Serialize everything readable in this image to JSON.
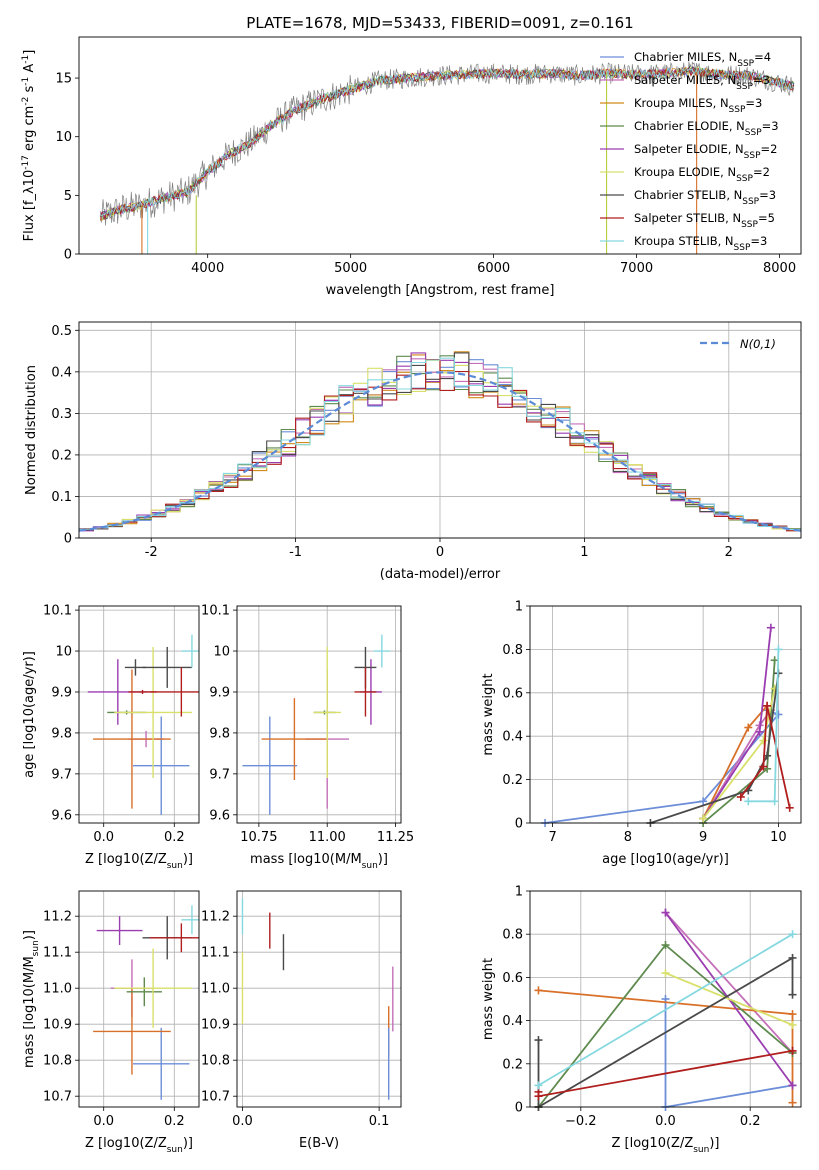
{
  "figure": {
    "title": "PLATE=1678, MJD=53433, FIBERID=0091, z=0.161"
  },
  "chart_data": [
    {
      "id": "spectrum",
      "type": "line",
      "xlabel": "wavelength [Angstrom, rest frame]",
      "ylabel": "Flux [f_λ10^-17 erg cm^-2 s^-1 A^-1]",
      "xlim": [
        3100,
        8150
      ],
      "ylim": [
        0,
        18.5
      ],
      "xticks": [
        4000,
        5000,
        6000,
        7000,
        8000
      ],
      "yticks": [
        0,
        5,
        10,
        15
      ],
      "grid": false,
      "legend_position": "top-right",
      "legend": [
        {
          "name": "Chabrier MILES, N_SSP=4",
          "color": "#6c8ed8"
        },
        {
          "name": "Salpeter MILES, N_SSP=3",
          "color": "#c46fb8"
        },
        {
          "name": "Kroupa MILES, N_SSP=3",
          "color": "#d08b1a"
        },
        {
          "name": "Chabrier ELODIE, N_SSP=3",
          "color": "#5e8a4e"
        },
        {
          "name": "Salpeter ELODIE, N_SSP=2",
          "color": "#9a3db0"
        },
        {
          "name": "Kroupa ELODIE, N_SSP=2",
          "color": "#d8e06a"
        },
        {
          "name": "Chabrier STELIB, N_SSP=3",
          "color": "#4a4a4a"
        },
        {
          "name": "Salpeter STELIB, N_SSP=5",
          "color": "#b01e1e"
        },
        {
          "name": "Kroupa STELIB, N_SSP=3",
          "color": "#86d8e0"
        }
      ],
      "data_color": "#808080",
      "continuum": {
        "x": [
          3250,
          3400,
          3550,
          3700,
          3850,
          4000,
          4150,
          4300,
          4450,
          4600,
          4800,
          5000,
          5200,
          5400,
          5600,
          5800,
          6000,
          6200,
          6400,
          6600,
          6800,
          7000,
          7200,
          7400,
          7600,
          7800,
          8000,
          8100
        ],
        "y": [
          3.2,
          3.8,
          4.2,
          4.8,
          5.2,
          7.0,
          8.5,
          9.5,
          11.0,
          12.2,
          13.2,
          14.0,
          14.8,
          15.0,
          15.2,
          15.3,
          15.4,
          15.3,
          15.4,
          15.2,
          15.4,
          15.3,
          15.4,
          15.6,
          15.3,
          15.2,
          14.6,
          14.3
        ]
      },
      "spikes": [
        {
          "x": 3540,
          "ymin": 0,
          "ymax": 4.2,
          "color": "#d8702a"
        },
        {
          "x": 3580,
          "ymin": 0,
          "ymax": 4.2,
          "color": "#86d8e0"
        },
        {
          "x": 3920,
          "ymin": 0,
          "ymax": 5.0,
          "color": "#b5d040"
        },
        {
          "x": 6790,
          "ymin": 0,
          "ymax": 15.5,
          "color": "#b5d040"
        },
        {
          "x": 7420,
          "ymin": 0,
          "ymax": 15.5,
          "color": "#d8702a"
        }
      ]
    },
    {
      "id": "residuals",
      "type": "histogram",
      "xlabel": "(data-model)/error",
      "ylabel": "Normed distribution",
      "xlim": [
        -2.5,
        2.5
      ],
      "ylim": [
        0,
        0.52
      ],
      "xticks": [
        -2,
        -1,
        0,
        1,
        2
      ],
      "yticks": [
        0.0,
        0.1,
        0.2,
        0.3,
        0.4,
        0.5
      ],
      "grid": true,
      "legend_position": "top-right",
      "reference_curve": {
        "name": "N(0,1)",
        "mean": 0,
        "sigma": 1,
        "color": "#5b8bd6",
        "style": "dashed"
      },
      "bin_start": -2.5,
      "bin_width": 0.1,
      "series_colors": [
        "#6c8ed8",
        "#c46fb8",
        "#d08b1a",
        "#5e8a4e",
        "#9a3db0",
        "#d8e06a",
        "#4a4a4a",
        "#b01e1e",
        "#86d8e0"
      ]
    },
    {
      "id": "z-age",
      "type": "errorbar",
      "xlabel": "Z [log10(Z/Z_sun)]",
      "ylabel": "age [log10(age/yr)]",
      "xlim": [
        -0.07,
        0.27
      ],
      "ylim": [
        9.58,
        10.11
      ],
      "xticks": [
        0.0,
        0.2
      ],
      "xtick_labels": [
        "0.0",
        "0.2"
      ],
      "yticks": [
        9.6,
        9.7,
        9.8,
        9.9,
        10.0,
        10.1
      ],
      "grid": true,
      "points": [
        {
          "x": 0.163,
          "xerr": 0.08,
          "y": 9.72,
          "yerr": 0.12,
          "color": "#6c8ed8"
        },
        {
          "x": 0.12,
          "xerr": 0.05,
          "y": 9.785,
          "yerr": 0.02,
          "color": "#c46fb8"
        },
        {
          "x": 0.08,
          "xerr": 0.11,
          "y": 9.785,
          "yerr": 0.17,
          "color": "#d8702a"
        },
        {
          "x": 0.065,
          "xerr": 0.055,
          "y": 9.85,
          "yerr": 0.005,
          "color": "#5e8a4e"
        },
        {
          "x": 0.04,
          "xerr": 0.085,
          "y": 9.9,
          "yerr": 0.08,
          "color": "#9a3db0"
        },
        {
          "x": 0.14,
          "xerr": 0.11,
          "y": 9.85,
          "yerr": 0.16,
          "color": "#d8e06a"
        },
        {
          "x": 0.18,
          "xerr": 0.07,
          "y": 9.96,
          "yerr": 0.05,
          "color": "#4a4a4a"
        },
        {
          "x": 0.22,
          "xerr": 0.09,
          "y": 9.9,
          "yerr": 0.06,
          "color": "#b01e1e"
        },
        {
          "x": 0.25,
          "xerr": 0.03,
          "y": 10.0,
          "yerr": 0.04,
          "color": "#86d8e0"
        },
        {
          "x": 0.09,
          "xerr": 0.03,
          "y": 9.96,
          "yerr": 0.02,
          "color": "#4a4a4a"
        },
        {
          "x": 0.11,
          "xerr": 0.04,
          "y": 9.9,
          "yerr": 0.005,
          "color": "#b01e1e"
        }
      ]
    },
    {
      "id": "mass-age",
      "type": "errorbar",
      "xlabel": "mass [log10(M/M_sun)]",
      "ylabel": "",
      "xlim": [
        10.67,
        11.27
      ],
      "ylim": [
        9.58,
        10.11
      ],
      "xticks": [
        10.75,
        11.0,
        11.25
      ],
      "xtick_labels": [
        "10.75",
        "11.00",
        "11.25"
      ],
      "yticks": [
        9.6,
        9.7,
        9.8,
        9.9,
        10.0,
        10.1
      ],
      "grid": true,
      "points": [
        {
          "x": 10.79,
          "xerr": 0.1,
          "y": 9.72,
          "yerr": 0.12,
          "color": "#6c8ed8"
        },
        {
          "x": 11.0,
          "xerr": 0.08,
          "y": 9.785,
          "yerr": 0.17,
          "color": "#c46fb8"
        },
        {
          "x": 10.88,
          "xerr": 0.12,
          "y": 9.785,
          "yerr": 0.1,
          "color": "#d8702a"
        },
        {
          "x": 10.99,
          "xerr": 0.04,
          "y": 9.85,
          "yerr": 0.005,
          "color": "#5e8a4e"
        },
        {
          "x": 11.16,
          "xerr": 0.04,
          "y": 9.9,
          "yerr": 0.08,
          "color": "#9a3db0"
        },
        {
          "x": 11.0,
          "xerr": 0.05,
          "y": 9.85,
          "yerr": 0.16,
          "color": "#d8e06a"
        },
        {
          "x": 11.14,
          "xerr": 0.04,
          "y": 9.96,
          "yerr": 0.05,
          "color": "#4a4a4a"
        },
        {
          "x": 11.14,
          "xerr": 0.04,
          "y": 9.9,
          "yerr": 0.06,
          "color": "#b01e1e"
        },
        {
          "x": 11.2,
          "xerr": 0.03,
          "y": 10.0,
          "yerr": 0.04,
          "color": "#86d8e0"
        }
      ]
    },
    {
      "id": "age-weight",
      "type": "line",
      "xlabel": "age [log10(age/yr)]",
      "ylabel": "mass weight",
      "xlim": [
        6.7,
        10.3
      ],
      "ylim": [
        0,
        1.0
      ],
      "xticks": [
        7,
        8,
        9,
        10
      ],
      "yticks": [
        0.0,
        0.2,
        0.4,
        0.6,
        0.8,
        1.0
      ],
      "grid": true,
      "series": [
        {
          "color": "#6c8ed8",
          "x": [
            6.9,
            9.0,
            10.0,
            9.85
          ],
          "y": [
            0.0,
            0.1,
            0.5,
            0.52
          ]
        },
        {
          "color": "#c46fb8",
          "x": [
            9.0,
            9.75,
            9.9
          ],
          "y": [
            0.02,
            0.45,
            0.52
          ]
        },
        {
          "color": "#d8702a",
          "x": [
            9.0,
            9.6,
            9.85
          ],
          "y": [
            0.02,
            0.44,
            0.54
          ]
        },
        {
          "color": "#5e8a4e",
          "x": [
            9.0,
            9.85,
            9.95
          ],
          "y": [
            0.0,
            0.25,
            0.75
          ]
        },
        {
          "color": "#9a3db0",
          "x": [
            9.0,
            9.75,
            9.9
          ],
          "y": [
            0.02,
            0.42,
            0.9
          ]
        },
        {
          "color": "#d8e06a",
          "x": [
            9.0,
            9.8,
            9.95
          ],
          "y": [
            0.02,
            0.38,
            0.62
          ]
        },
        {
          "color": "#4a4a4a",
          "x": [
            8.3,
            9.6,
            9.85,
            10.0
          ],
          "y": [
            0.0,
            0.15,
            0.31,
            0.69
          ]
        },
        {
          "color": "#b01e1e",
          "x": [
            9.5,
            9.8,
            9.85,
            10.15
          ],
          "y": [
            0.12,
            0.26,
            0.54,
            0.07
          ]
        },
        {
          "color": "#86d8e0",
          "x": [
            9.6,
            9.95,
            10.0
          ],
          "y": [
            0.1,
            0.1,
            0.8
          ]
        }
      ]
    },
    {
      "id": "z-mass",
      "type": "errorbar",
      "xlabel": "Z [log10(Z/Z_sun)]",
      "ylabel": "mass [log10(M/M_sun)]",
      "xlim": [
        -0.07,
        0.27
      ],
      "ylim": [
        10.67,
        11.27
      ],
      "xticks": [
        0.0,
        0.2
      ],
      "xtick_labels": [
        "0.0",
        "0.2"
      ],
      "yticks": [
        10.7,
        10.8,
        10.9,
        11.0,
        11.1,
        11.2
      ],
      "grid": true,
      "points": [
        {
          "x": 0.163,
          "xerr": 0.08,
          "y": 10.79,
          "yerr": 0.1,
          "color": "#6c8ed8"
        },
        {
          "x": 0.08,
          "xerr": 0.06,
          "y": 11.0,
          "yerr": 0.08,
          "color": "#c46fb8"
        },
        {
          "x": 0.08,
          "xerr": 0.11,
          "y": 10.88,
          "yerr": 0.12,
          "color": "#d8702a"
        },
        {
          "x": 0.115,
          "xerr": 0.05,
          "y": 10.99,
          "yerr": 0.04,
          "color": "#5e8a4e"
        },
        {
          "x": 0.045,
          "xerr": 0.065,
          "y": 11.16,
          "yerr": 0.04,
          "color": "#9a3db0"
        },
        {
          "x": 0.14,
          "xerr": 0.11,
          "y": 11.0,
          "yerr": 0.11,
          "color": "#d8e06a"
        },
        {
          "x": 0.18,
          "xerr": 0.07,
          "y": 11.14,
          "yerr": 0.06,
          "color": "#4a4a4a"
        },
        {
          "x": 0.22,
          "xerr": 0.09,
          "y": 11.14,
          "yerr": 0.04,
          "color": "#b01e1e"
        },
        {
          "x": 0.25,
          "xerr": 0.03,
          "y": 11.19,
          "yerr": 0.04,
          "color": "#86d8e0"
        }
      ]
    },
    {
      "id": "ebv-mass",
      "type": "errorbar",
      "xlabel": "E(B-V)",
      "ylabel": "",
      "xlim": [
        -0.004,
        0.116
      ],
      "ylim": [
        10.67,
        11.27
      ],
      "xticks": [
        0.0,
        0.1
      ],
      "xtick_labels": [
        "0.0",
        "0.1"
      ],
      "yticks": [
        10.7,
        10.8,
        10.9,
        11.0,
        11.1,
        11.2
      ],
      "grid": true,
      "points": [
        {
          "x": 0.0,
          "xerr": 0.0,
          "y": 11.2,
          "yerr": 0.05,
          "color": "#86d8e0"
        },
        {
          "x": 0.0,
          "xerr": 0.0,
          "y": 11.0,
          "yerr": 0.1,
          "color": "#d8e06a"
        },
        {
          "x": 0.02,
          "xerr": 0.0,
          "y": 11.16,
          "yerr": 0.05,
          "color": "#b01e1e"
        },
        {
          "x": 0.03,
          "xerr": 0.0,
          "y": 11.1,
          "yerr": 0.05,
          "color": "#4a4a4a"
        },
        {
          "x": 0.107,
          "xerr": 0.0,
          "y": 10.88,
          "yerr": 0.07,
          "color": "#d8702a"
        },
        {
          "x": 0.11,
          "xerr": 0.0,
          "y": 10.97,
          "yerr": 0.09,
          "color": "#c46fb8"
        },
        {
          "x": 0.107,
          "xerr": 0.0,
          "y": 10.79,
          "yerr": 0.1,
          "color": "#6c8ed8"
        }
      ]
    },
    {
      "id": "z-weight",
      "type": "line",
      "xlabel": "Z [log10(Z/Z_sun)]",
      "ylabel": "mass weight",
      "xlim": [
        -0.32,
        0.32
      ],
      "ylim": [
        0,
        1.0
      ],
      "xticks": [
        -0.2,
        0.0,
        0.2
      ],
      "xtick_labels": [
        "−0.2",
        "0.0",
        "0.2"
      ],
      "yticks": [
        0.0,
        0.2,
        0.4,
        0.6,
        0.8,
        1.0
      ],
      "grid": true,
      "series": [
        {
          "color": "#6c8ed8",
          "x": [
            0.0,
            0.0,
            0.3
          ],
          "y": [
            0.5,
            0.0,
            0.1
          ]
        },
        {
          "color": "#c46fb8",
          "x": [
            0.0,
            0.3
          ],
          "y": [
            0.9,
            0.25
          ]
        },
        {
          "color": "#d8702a",
          "x": [
            -0.3,
            0.3,
            0.3
          ],
          "y": [
            0.54,
            0.43,
            0.02
          ]
        },
        {
          "color": "#5e8a4e",
          "x": [
            -0.3,
            0.0,
            0.3
          ],
          "y": [
            0.0,
            0.75,
            0.25
          ]
        },
        {
          "color": "#9a3db0",
          "x": [
            0.0,
            0.3
          ],
          "y": [
            0.9,
            0.1
          ]
        },
        {
          "color": "#d8e06a",
          "x": [
            0.0,
            0.3
          ],
          "y": [
            0.62,
            0.38
          ]
        },
        {
          "color": "#4a4a4a",
          "x": [
            -0.3,
            -0.3,
            0.3,
            0.3
          ],
          "y": [
            0.31,
            0.0,
            0.69,
            0.52
          ]
        },
        {
          "color": "#b01e1e",
          "x": [
            -0.3,
            -0.3,
            0.3,
            0.3
          ],
          "y": [
            0.07,
            0.05,
            0.26,
            0.26
          ]
        },
        {
          "color": "#86d8e0",
          "x": [
            -0.3,
            0.3
          ],
          "y": [
            0.1,
            0.8
          ]
        }
      ]
    }
  ]
}
